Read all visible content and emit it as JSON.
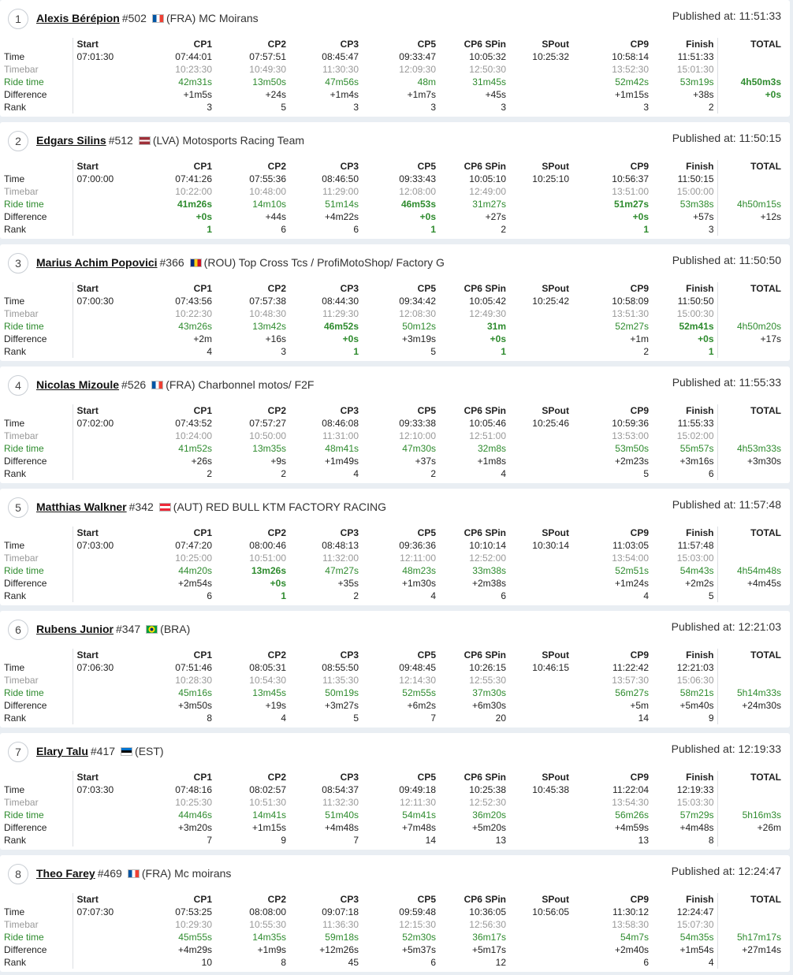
{
  "columns": [
    "Start",
    "CP1",
    "CP2",
    "CP3",
    "CP5",
    "CP6 SPin",
    "SPout",
    "CP9",
    "Finish",
    "TOTAL"
  ],
  "row_labels": {
    "time": "Time",
    "timebar": "Timebar",
    "ride": "Ride time",
    "diff": "Difference",
    "rank": "Rank"
  },
  "published_prefix": "Published at: ",
  "flag_colors": {
    "FRA": [
      "#0055a4",
      "#ffffff",
      "#ef4135"
    ],
    "LVA": [
      "#9e3039",
      "#ffffff",
      "#9e3039"
    ],
    "ROU": [
      "#002b7f",
      "#fcd116",
      "#ce1126"
    ],
    "AUT": [
      "#ed2939",
      "#ffffff",
      "#ed2939"
    ],
    "BRA": [
      "#009c3b",
      "#ffdf00",
      "#009c3b"
    ],
    "EST": [
      "#0072ce",
      "#000000",
      "#ffffff"
    ]
  },
  "riders": [
    {
      "position": "1",
      "name": "Alexis Bérépion",
      "bib": "#502",
      "country": "FRA",
      "team": "(FRA) MC Moirans",
      "published": "11:51:33",
      "time": [
        "07:01:30",
        "07:44:01",
        "07:57:51",
        "08:45:47",
        "09:33:47",
        "10:05:32",
        "10:25:32",
        "10:58:14",
        "11:51:33",
        ""
      ],
      "timebar": [
        "",
        "10:23:30",
        "10:49:30",
        "11:30:30",
        "12:09:30",
        "12:50:30",
        "",
        "13:52:30",
        "15:01:30",
        ""
      ],
      "ride": [
        "",
        "42m31s",
        "13m50s",
        "47m56s",
        "48m",
        "31m45s",
        "",
        "52m42s",
        "53m19s",
        "4h50m3s"
      ],
      "diff": [
        "",
        "+1m5s",
        "+24s",
        "+1m4s",
        "+1m7s",
        "+45s",
        "",
        "+1m15s",
        "+38s",
        "+0s"
      ],
      "rank": [
        "",
        "3",
        "5",
        "3",
        "3",
        "3",
        "",
        "3",
        "2",
        ""
      ],
      "best_ride": [
        9
      ],
      "best_diff": [
        9
      ],
      "best_rank": []
    },
    {
      "position": "2",
      "name": "Edgars Silins",
      "bib": "#512",
      "country": "LVA",
      "team": "(LVA) Motosports Racing Team",
      "published": "11:50:15",
      "time": [
        "07:00:00",
        "07:41:26",
        "07:55:36",
        "08:46:50",
        "09:33:43",
        "10:05:10",
        "10:25:10",
        "10:56:37",
        "11:50:15",
        ""
      ],
      "timebar": [
        "",
        "10:22:00",
        "10:48:00",
        "11:29:00",
        "12:08:00",
        "12:49:00",
        "",
        "13:51:00",
        "15:00:00",
        ""
      ],
      "ride": [
        "",
        "41m26s",
        "14m10s",
        "51m14s",
        "46m53s",
        "31m27s",
        "",
        "51m27s",
        "53m38s",
        "4h50m15s"
      ],
      "diff": [
        "",
        "+0s",
        "+44s",
        "+4m22s",
        "+0s",
        "+27s",
        "",
        "+0s",
        "+57s",
        "+12s"
      ],
      "rank": [
        "",
        "1",
        "6",
        "6",
        "1",
        "2",
        "",
        "1",
        "3",
        ""
      ],
      "best_ride": [
        1,
        4,
        7
      ],
      "best_diff": [
        1,
        4,
        7
      ],
      "best_rank": [
        1,
        4,
        7
      ]
    },
    {
      "position": "3",
      "name": "Marius Achim Popovici",
      "bib": "#366",
      "country": "ROU",
      "team": "(ROU) Top Cross Tcs / ProfiMotoShop/ Factory G",
      "published": "11:50:50",
      "time": [
        "07:00:30",
        "07:43:56",
        "07:57:38",
        "08:44:30",
        "09:34:42",
        "10:05:42",
        "10:25:42",
        "10:58:09",
        "11:50:50",
        ""
      ],
      "timebar": [
        "",
        "10:22:30",
        "10:48:30",
        "11:29:30",
        "12:08:30",
        "12:49:30",
        "",
        "13:51:30",
        "15:00:30",
        ""
      ],
      "ride": [
        "",
        "43m26s",
        "13m42s",
        "46m52s",
        "50m12s",
        "31m",
        "",
        "52m27s",
        "52m41s",
        "4h50m20s"
      ],
      "diff": [
        "",
        "+2m",
        "+16s",
        "+0s",
        "+3m19s",
        "+0s",
        "",
        "+1m",
        "+0s",
        "+17s"
      ],
      "rank": [
        "",
        "4",
        "3",
        "1",
        "5",
        "1",
        "",
        "2",
        "1",
        ""
      ],
      "best_ride": [
        3,
        5,
        8
      ],
      "best_diff": [
        3,
        5,
        8
      ],
      "best_rank": [
        3,
        5,
        8
      ]
    },
    {
      "position": "4",
      "name": "Nicolas Mizoule",
      "bib": "#526",
      "country": "FRA",
      "team": "(FRA) Charbonnel motos/ F2F",
      "published": "11:55:33",
      "time": [
        "07:02:00",
        "07:43:52",
        "07:57:27",
        "08:46:08",
        "09:33:38",
        "10:05:46",
        "10:25:46",
        "10:59:36",
        "11:55:33",
        ""
      ],
      "timebar": [
        "",
        "10:24:00",
        "10:50:00",
        "11:31:00",
        "12:10:00",
        "12:51:00",
        "",
        "13:53:00",
        "15:02:00",
        ""
      ],
      "ride": [
        "",
        "41m52s",
        "13m35s",
        "48m41s",
        "47m30s",
        "32m8s",
        "",
        "53m50s",
        "55m57s",
        "4h53m33s"
      ],
      "diff": [
        "",
        "+26s",
        "+9s",
        "+1m49s",
        "+37s",
        "+1m8s",
        "",
        "+2m23s",
        "+3m16s",
        "+3m30s"
      ],
      "rank": [
        "",
        "2",
        "2",
        "4",
        "2",
        "4",
        "",
        "5",
        "6",
        ""
      ],
      "best_ride": [],
      "best_diff": [],
      "best_rank": []
    },
    {
      "position": "5",
      "name": "Matthias Walkner",
      "bib": "#342",
      "country": "AUT",
      "team": "(AUT) RED BULL KTM FACTORY RACING",
      "published": "11:57:48",
      "time": [
        "07:03:00",
        "07:47:20",
        "08:00:46",
        "08:48:13",
        "09:36:36",
        "10:10:14",
        "10:30:14",
        "11:03:05",
        "11:57:48",
        ""
      ],
      "timebar": [
        "",
        "10:25:00",
        "10:51:00",
        "11:32:00",
        "12:11:00",
        "12:52:00",
        "",
        "13:54:00",
        "15:03:00",
        ""
      ],
      "ride": [
        "",
        "44m20s",
        "13m26s",
        "47m27s",
        "48m23s",
        "33m38s",
        "",
        "52m51s",
        "54m43s",
        "4h54m48s"
      ],
      "diff": [
        "",
        "+2m54s",
        "+0s",
        "+35s",
        "+1m30s",
        "+2m38s",
        "",
        "+1m24s",
        "+2m2s",
        "+4m45s"
      ],
      "rank": [
        "",
        "6",
        "1",
        "2",
        "4",
        "6",
        "",
        "4",
        "5",
        ""
      ],
      "best_ride": [
        2
      ],
      "best_diff": [
        2
      ],
      "best_rank": [
        2
      ]
    },
    {
      "position": "6",
      "name": "Rubens Junior",
      "bib": "#347",
      "country": "BRA",
      "team": "(BRA)",
      "published": "12:21:03",
      "time": [
        "07:06:30",
        "07:51:46",
        "08:05:31",
        "08:55:50",
        "09:48:45",
        "10:26:15",
        "10:46:15",
        "11:22:42",
        "12:21:03",
        ""
      ],
      "timebar": [
        "",
        "10:28:30",
        "10:54:30",
        "11:35:30",
        "12:14:30",
        "12:55:30",
        "",
        "13:57:30",
        "15:06:30",
        ""
      ],
      "ride": [
        "",
        "45m16s",
        "13m45s",
        "50m19s",
        "52m55s",
        "37m30s",
        "",
        "56m27s",
        "58m21s",
        "5h14m33s"
      ],
      "diff": [
        "",
        "+3m50s",
        "+19s",
        "+3m27s",
        "+6m2s",
        "+6m30s",
        "",
        "+5m",
        "+5m40s",
        "+24m30s"
      ],
      "rank": [
        "",
        "8",
        "4",
        "5",
        "7",
        "20",
        "",
        "14",
        "9",
        ""
      ],
      "best_ride": [],
      "best_diff": [],
      "best_rank": []
    },
    {
      "position": "7",
      "name": "Elary Talu",
      "bib": "#417",
      "country": "EST",
      "team": "(EST)",
      "published": "12:19:33",
      "time": [
        "07:03:30",
        "07:48:16",
        "08:02:57",
        "08:54:37",
        "09:49:18",
        "10:25:38",
        "10:45:38",
        "11:22:04",
        "12:19:33",
        ""
      ],
      "timebar": [
        "",
        "10:25:30",
        "10:51:30",
        "11:32:30",
        "12:11:30",
        "12:52:30",
        "",
        "13:54:30",
        "15:03:30",
        ""
      ],
      "ride": [
        "",
        "44m46s",
        "14m41s",
        "51m40s",
        "54m41s",
        "36m20s",
        "",
        "56m26s",
        "57m29s",
        "5h16m3s"
      ],
      "diff": [
        "",
        "+3m20s",
        "+1m15s",
        "+4m48s",
        "+7m48s",
        "+5m20s",
        "",
        "+4m59s",
        "+4m48s",
        "+26m"
      ],
      "rank": [
        "",
        "7",
        "9",
        "7",
        "14",
        "13",
        "",
        "13",
        "8",
        ""
      ],
      "best_ride": [],
      "best_diff": [],
      "best_rank": []
    },
    {
      "position": "8",
      "name": "Theo Farey",
      "bib": "#469",
      "country": "FRA",
      "team": "(FRA) Mc moirans",
      "published": "12:24:47",
      "time": [
        "07:07:30",
        "07:53:25",
        "08:08:00",
        "09:07:18",
        "09:59:48",
        "10:36:05",
        "10:56:05",
        "11:30:12",
        "12:24:47",
        ""
      ],
      "timebar": [
        "",
        "10:29:30",
        "10:55:30",
        "11:36:30",
        "12:15:30",
        "12:56:30",
        "",
        "13:58:30",
        "15:07:30",
        ""
      ],
      "ride": [
        "",
        "45m55s",
        "14m35s",
        "59m18s",
        "52m30s",
        "36m17s",
        "",
        "54m7s",
        "54m35s",
        "5h17m17s"
      ],
      "diff": [
        "",
        "+4m29s",
        "+1m9s",
        "+12m26s",
        "+5m37s",
        "+5m17s",
        "",
        "+2m40s",
        "+1m54s",
        "+27m14s"
      ],
      "rank": [
        "",
        "10",
        "8",
        "45",
        "6",
        "12",
        "",
        "6",
        "4",
        ""
      ],
      "best_ride": [],
      "best_diff": [],
      "best_rank": []
    }
  ]
}
